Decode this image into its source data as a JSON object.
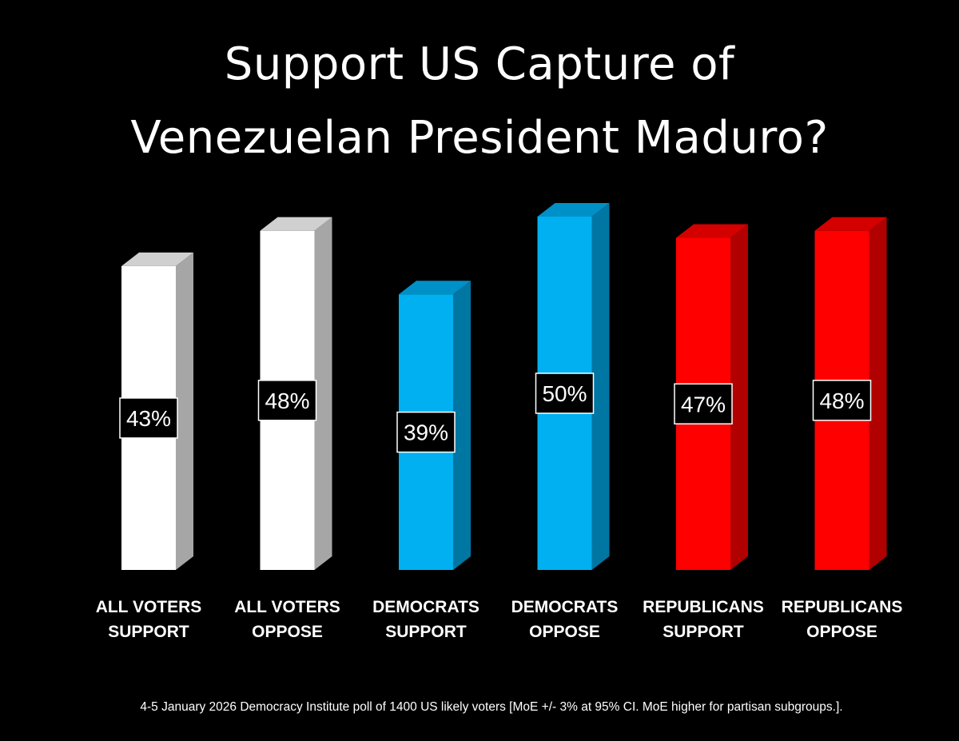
{
  "chart_data": {
    "type": "bar",
    "title_lines": [
      "Support US Capture of",
      "Venezuelan President Maduro?"
    ],
    "categories": [
      [
        "ALL VOTERS",
        "SUPPORT"
      ],
      [
        "ALL VOTERS",
        "OPPOSE"
      ],
      [
        "DEMOCRATS",
        "SUPPORT"
      ],
      [
        "DEMOCRATS",
        "OPPOSE"
      ],
      [
        "REPUBLICANS",
        "SUPPORT"
      ],
      [
        "REPUBLICANS",
        "OPPOSE"
      ]
    ],
    "values": [
      43,
      48,
      39,
      50,
      47,
      48
    ],
    "value_labels": [
      "43%",
      "48%",
      "39%",
      "50%",
      "47%",
      "48%"
    ],
    "bar_colors": [
      "#ffffff",
      "#ffffff",
      "#00b0f0",
      "#00b0f0",
      "#ff0000",
      "#ff0000"
    ],
    "side_colors": [
      "#a6a6a6",
      "#a6a6a6",
      "#0076a3",
      "#0076a3",
      "#b00000",
      "#b00000"
    ],
    "top_colors": [
      "#d0d0d0",
      "#d0d0d0",
      "#0090c8",
      "#0090c8",
      "#d40000",
      "#d40000"
    ],
    "ylim": [
      0,
      50
    ],
    "grid": false,
    "legend": "none",
    "style": "3d-columns",
    "footnote": "4-5 January 2026 Democracy Institute poll of 1400 US likely voters [MoE +/- 3% at 95% CI. MoE higher for partisan subgroups.]."
  }
}
